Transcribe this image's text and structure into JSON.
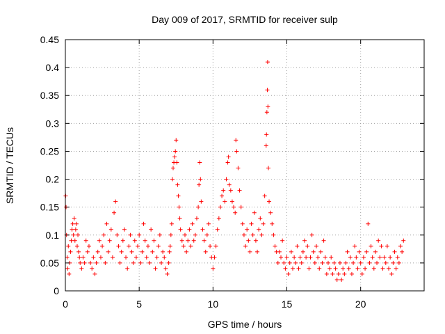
{
  "chart_data": {
    "type": "scatter",
    "title": "Day 009 of 2017, SRMTID for receiver sulp",
    "xlabel": "GPS time / hours",
    "ylabel": "SRMTID / TECUs",
    "xlim": [
      0,
      24.3
    ],
    "ylim": [
      0,
      0.45
    ],
    "x_ticks": [
      0,
      5,
      10,
      15,
      20
    ],
    "x_tick_labels": [
      "0",
      "5",
      "10",
      "15",
      "20"
    ],
    "y_ticks": [
      0,
      0.05,
      0.1,
      0.15,
      0.2,
      0.25,
      0.3,
      0.35,
      0.4,
      0.45
    ],
    "y_tick_labels": [
      "0",
      "0.05",
      "0.1",
      "0.15",
      "0.2",
      "0.25",
      "0.3",
      "0.35",
      "0.4",
      "0.45"
    ],
    "grid": true,
    "marker": "plus",
    "color": "#ff0000",
    "series": [
      {
        "name": "SRMTID",
        "points": [
          [
            0.02,
            0.17
          ],
          [
            0.05,
            0.15
          ],
          [
            0.08,
            0.1
          ],
          [
            0.12,
            0.06
          ],
          [
            0.15,
            0.04
          ],
          [
            0.2,
            0.08
          ],
          [
            0.25,
            0.03
          ],
          [
            0.3,
            0.05
          ],
          [
            0.35,
            0.07
          ],
          [
            0.4,
            0.09
          ],
          [
            0.45,
            0.11
          ],
          [
            0.5,
            0.12
          ],
          [
            0.55,
            0.1
          ],
          [
            0.6,
            0.13
          ],
          [
            0.65,
            0.09
          ],
          [
            0.7,
            0.11
          ],
          [
            0.75,
            0.12
          ],
          [
            0.8,
            0.08
          ],
          [
            0.85,
            0.1
          ],
          [
            0.9,
            0.07
          ],
          [
            0.95,
            0.06
          ],
          [
            1.0,
            0.05
          ],
          [
            1.1,
            0.04
          ],
          [
            1.2,
            0.06
          ],
          [
            1.3,
            0.05
          ],
          [
            1.4,
            0.09
          ],
          [
            1.5,
            0.07
          ],
          [
            1.6,
            0.08
          ],
          [
            1.7,
            0.05
          ],
          [
            1.8,
            0.04
          ],
          [
            1.9,
            0.06
          ],
          [
            2.0,
            0.03
          ],
          [
            2.1,
            0.05
          ],
          [
            2.2,
            0.07
          ],
          [
            2.3,
            0.09
          ],
          [
            2.4,
            0.06
          ],
          [
            2.5,
            0.08
          ],
          [
            2.6,
            0.1
          ],
          [
            2.7,
            0.05
          ],
          [
            2.8,
            0.12
          ],
          [
            2.9,
            0.07
          ],
          [
            3.0,
            0.09
          ],
          [
            3.1,
            0.11
          ],
          [
            3.2,
            0.06
          ],
          [
            3.3,
            0.14
          ],
          [
            3.4,
            0.16
          ],
          [
            3.5,
            0.1
          ],
          [
            3.6,
            0.08
          ],
          [
            3.7,
            0.05
          ],
          [
            3.8,
            0.07
          ],
          [
            3.9,
            0.09
          ],
          [
            4.0,
            0.11
          ],
          [
            4.1,
            0.06
          ],
          [
            4.2,
            0.04
          ],
          [
            4.3,
            0.08
          ],
          [
            4.4,
            0.1
          ],
          [
            4.5,
            0.07
          ],
          [
            4.6,
            0.05
          ],
          [
            4.7,
            0.09
          ],
          [
            4.8,
            0.06
          ],
          [
            4.9,
            0.08
          ],
          [
            5.0,
            0.1
          ],
          [
            5.1,
            0.05
          ],
          [
            5.2,
            0.07
          ],
          [
            5.3,
            0.12
          ],
          [
            5.4,
            0.09
          ],
          [
            5.5,
            0.06
          ],
          [
            5.6,
            0.08
          ],
          [
            5.7,
            0.05
          ],
          [
            5.8,
            0.11
          ],
          [
            5.9,
            0.07
          ],
          [
            6.0,
            0.09
          ],
          [
            6.1,
            0.04
          ],
          [
            6.2,
            0.06
          ],
          [
            6.3,
            0.08
          ],
          [
            6.4,
            0.1
          ],
          [
            6.5,
            0.05
          ],
          [
            6.6,
            0.07
          ],
          [
            6.7,
            0.06
          ],
          [
            6.8,
            0.04
          ],
          [
            6.9,
            0.03
          ],
          [
            7.0,
            0.05
          ],
          [
            7.05,
            0.07
          ],
          [
            7.1,
            0.08
          ],
          [
            7.15,
            0.1
          ],
          [
            7.2,
            0.12
          ],
          [
            7.25,
            0.2
          ],
          [
            7.3,
            0.22
          ],
          [
            7.35,
            0.23
          ],
          [
            7.4,
            0.24
          ],
          [
            7.45,
            0.25
          ],
          [
            7.5,
            0.27
          ],
          [
            7.55,
            0.23
          ],
          [
            7.6,
            0.19
          ],
          [
            7.65,
            0.17
          ],
          [
            7.7,
            0.15
          ],
          [
            7.75,
            0.13
          ],
          [
            7.8,
            0.11
          ],
          [
            7.9,
            0.09
          ],
          [
            8.0,
            0.08
          ],
          [
            8.1,
            0.1
          ],
          [
            8.2,
            0.07
          ],
          [
            8.3,
            0.09
          ],
          [
            8.4,
            0.11
          ],
          [
            8.5,
            0.08
          ],
          [
            8.6,
            0.12
          ],
          [
            8.7,
            0.09
          ],
          [
            8.8,
            0.1
          ],
          [
            8.9,
            0.13
          ],
          [
            9.0,
            0.15
          ],
          [
            9.05,
            0.19
          ],
          [
            9.1,
            0.23
          ],
          [
            9.15,
            0.2
          ],
          [
            9.2,
            0.16
          ],
          [
            9.3,
            0.11
          ],
          [
            9.4,
            0.09
          ],
          [
            9.5,
            0.07
          ],
          [
            9.6,
            0.1
          ],
          [
            9.7,
            0.12
          ],
          [
            9.8,
            0.08
          ],
          [
            9.9,
            0.06
          ],
          [
            10.0,
            0.04
          ],
          [
            10.1,
            0.06
          ],
          [
            10.2,
            0.08
          ],
          [
            10.3,
            0.11
          ],
          [
            10.4,
            0.13
          ],
          [
            10.5,
            0.15
          ],
          [
            10.6,
            0.17
          ],
          [
            10.7,
            0.18
          ],
          [
            10.8,
            0.16
          ],
          [
            10.9,
            0.2
          ],
          [
            11.0,
            0.23
          ],
          [
            11.05,
            0.24
          ],
          [
            11.1,
            0.19
          ],
          [
            11.2,
            0.18
          ],
          [
            11.3,
            0.16
          ],
          [
            11.4,
            0.15
          ],
          [
            11.5,
            0.14
          ],
          [
            11.55,
            0.27
          ],
          [
            11.6,
            0.25
          ],
          [
            11.7,
            0.22
          ],
          [
            11.8,
            0.18
          ],
          [
            11.9,
            0.15
          ],
          [
            12.0,
            0.12
          ],
          [
            12.1,
            0.1
          ],
          [
            12.2,
            0.08
          ],
          [
            12.3,
            0.11
          ],
          [
            12.4,
            0.09
          ],
          [
            12.5,
            0.07
          ],
          [
            12.6,
            0.12
          ],
          [
            12.7,
            0.1
          ],
          [
            12.8,
            0.14
          ],
          [
            12.9,
            0.09
          ],
          [
            13.0,
            0.07
          ],
          [
            13.1,
            0.11
          ],
          [
            13.2,
            0.13
          ],
          [
            13.3,
            0.1
          ],
          [
            13.4,
            0.12
          ],
          [
            13.5,
            0.17
          ],
          [
            13.6,
            0.26
          ],
          [
            13.62,
            0.28
          ],
          [
            13.65,
            0.32
          ],
          [
            13.68,
            0.36
          ],
          [
            13.7,
            0.41
          ],
          [
            13.72,
            0.33
          ],
          [
            13.75,
            0.22
          ],
          [
            13.8,
            0.16
          ],
          [
            13.9,
            0.14
          ],
          [
            14.0,
            0.12
          ],
          [
            14.1,
            0.1
          ],
          [
            14.2,
            0.08
          ],
          [
            14.3,
            0.07
          ],
          [
            14.4,
            0.05
          ],
          [
            14.5,
            0.07
          ],
          [
            14.6,
            0.06
          ],
          [
            14.7,
            0.09
          ],
          [
            14.8,
            0.05
          ],
          [
            14.9,
            0.04
          ],
          [
            15.0,
            0.06
          ],
          [
            15.1,
            0.03
          ],
          [
            15.2,
            0.05
          ],
          [
            15.3,
            0.07
          ],
          [
            15.4,
            0.04
          ],
          [
            15.5,
            0.06
          ],
          [
            15.6,
            0.05
          ],
          [
            15.7,
            0.08
          ],
          [
            15.8,
            0.04
          ],
          [
            15.9,
            0.06
          ],
          [
            16.0,
            0.05
          ],
          [
            16.1,
            0.07
          ],
          [
            16.2,
            0.09
          ],
          [
            16.3,
            0.06
          ],
          [
            16.4,
            0.08
          ],
          [
            16.5,
            0.04
          ],
          [
            16.6,
            0.06
          ],
          [
            16.7,
            0.1
          ],
          [
            16.8,
            0.07
          ],
          [
            16.9,
            0.05
          ],
          [
            17.0,
            0.08
          ],
          [
            17.1,
            0.06
          ],
          [
            17.2,
            0.04
          ],
          [
            17.3,
            0.07
          ],
          [
            17.4,
            0.05
          ],
          [
            17.5,
            0.09
          ],
          [
            17.6,
            0.06
          ],
          [
            17.7,
            0.03
          ],
          [
            17.8,
            0.05
          ],
          [
            17.9,
            0.04
          ],
          [
            18.0,
            0.06
          ],
          [
            18.1,
            0.03
          ],
          [
            18.2,
            0.05
          ],
          [
            18.3,
            0.04
          ],
          [
            18.4,
            0.02
          ],
          [
            18.5,
            0.03
          ],
          [
            18.6,
            0.05
          ],
          [
            18.7,
            0.02
          ],
          [
            18.8,
            0.04
          ],
          [
            18.9,
            0.03
          ],
          [
            19.0,
            0.05
          ],
          [
            19.1,
            0.07
          ],
          [
            19.2,
            0.04
          ],
          [
            19.3,
            0.06
          ],
          [
            19.4,
            0.03
          ],
          [
            19.5,
            0.05
          ],
          [
            19.6,
            0.08
          ],
          [
            19.7,
            0.06
          ],
          [
            19.8,
            0.04
          ],
          [
            19.9,
            0.07
          ],
          [
            20.0,
            0.05
          ],
          [
            20.1,
            0.03
          ],
          [
            20.2,
            0.06
          ],
          [
            20.3,
            0.04
          ],
          [
            20.4,
            0.07
          ],
          [
            20.5,
            0.12
          ],
          [
            20.6,
            0.05
          ],
          [
            20.7,
            0.08
          ],
          [
            20.8,
            0.06
          ],
          [
            20.9,
            0.04
          ],
          [
            21.0,
            0.07
          ],
          [
            21.1,
            0.05
          ],
          [
            21.2,
            0.09
          ],
          [
            21.3,
            0.06
          ],
          [
            21.4,
            0.08
          ],
          [
            21.5,
            0.04
          ],
          [
            21.6,
            0.06
          ],
          [
            21.7,
            0.05
          ],
          [
            21.8,
            0.08
          ],
          [
            21.9,
            0.04
          ],
          [
            22.0,
            0.06
          ],
          [
            22.1,
            0.03
          ],
          [
            22.2,
            0.05
          ],
          [
            22.3,
            0.07
          ],
          [
            22.4,
            0.04
          ],
          [
            22.5,
            0.06
          ],
          [
            22.6,
            0.05
          ],
          [
            22.7,
            0.08
          ],
          [
            22.8,
            0.07
          ],
          [
            22.9,
            0.09
          ]
        ]
      }
    ]
  }
}
